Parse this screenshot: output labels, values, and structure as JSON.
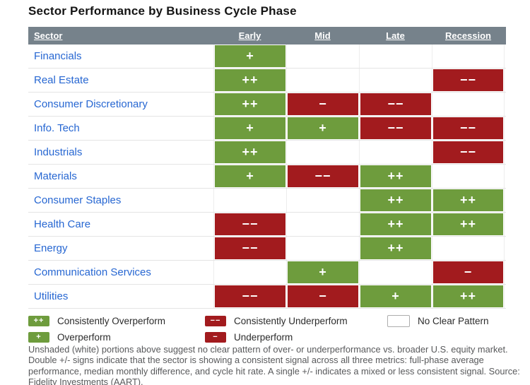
{
  "header": {
    "sector_label": "Sector"
  },
  "colors": {
    "header_bg": "#76828B",
    "overperform_green": "#6E9C3D",
    "underperform_red": "#A21B1E",
    "sector_link_blue": "#2767D2",
    "footnote_gray": "#58595b"
  },
  "chart_data": {
    "type": "heatmap",
    "title": "Sector Performance by Business Cycle Phase",
    "columns": [
      "Early",
      "Mid",
      "Late",
      "Recession"
    ],
    "rows": [
      {
        "sector": "Financials",
        "signals": [
          "+",
          "",
          "",
          ""
        ]
      },
      {
        "sector": "Real Estate",
        "signals": [
          "++",
          "",
          "",
          "−−"
        ]
      },
      {
        "sector": "Consumer Discretionary",
        "signals": [
          "++",
          "−",
          "−−",
          ""
        ]
      },
      {
        "sector": "Info. Tech",
        "signals": [
          "+",
          "+",
          "−−",
          "−−"
        ]
      },
      {
        "sector": "Industrials",
        "signals": [
          "++",
          "",
          "",
          "−−"
        ]
      },
      {
        "sector": "Materials",
        "signals": [
          "+",
          "−−",
          "++",
          ""
        ]
      },
      {
        "sector": "Consumer Staples",
        "signals": [
          "",
          "",
          "++",
          "++"
        ]
      },
      {
        "sector": "Health Care",
        "signals": [
          "−−",
          "",
          "++",
          "++"
        ]
      },
      {
        "sector": "Energy",
        "signals": [
          "−−",
          "",
          "++",
          ""
        ]
      },
      {
        "sector": "Communication Services",
        "signals": [
          "",
          "+",
          "",
          "−"
        ]
      },
      {
        "sector": "Utilities",
        "signals": [
          "−−",
          "−",
          "+",
          "++"
        ]
      }
    ],
    "encoding": {
      "++": "Consistently Overperform (green)",
      "+": "Overperform (green)",
      "−−": "Consistently Underperform (red)",
      "−": "Underperform (red)",
      "": "No Clear Pattern (white)"
    },
    "legend_position": "bottom"
  },
  "legend": {
    "items": [
      {
        "symbol": "++",
        "tone": "green",
        "label": "Consistently Overperform"
      },
      {
        "symbol": "−−",
        "tone": "red",
        "label": "Consistently Underperform"
      },
      {
        "symbol": "",
        "tone": "white",
        "label": "No Clear Pattern"
      },
      {
        "symbol": "+",
        "tone": "green",
        "label": "Overperform"
      },
      {
        "symbol": "−",
        "tone": "red",
        "label": "Underperform"
      }
    ]
  },
  "footnote": "Unshaded (white) portions above suggest no clear pattern of over- or underperformance vs. broader U.S. equity market. Double +/- signs indicate that the sector is showing a consistent signal across all three metrics: full-phase average performance, median monthly difference, and cycle hit rate. A single +/- indicates a mixed or less consistent signal. Source: Fidelity Investments (AART)."
}
